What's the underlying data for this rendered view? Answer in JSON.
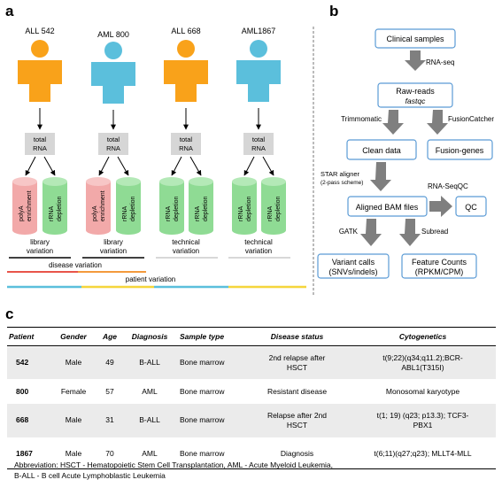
{
  "panel_labels": {
    "a": "a",
    "b": "b",
    "c": "c"
  },
  "panel_a": {
    "patients": [
      {
        "name": "ALL 542",
        "color": "#f9a21a"
      },
      {
        "name": "AML 800",
        "color": "#5bbfdc"
      },
      {
        "name": "ALL 668",
        "color": "#f9a21a"
      },
      {
        "name": "AML1867",
        "color": "#5bbfdc"
      }
    ],
    "total_rna": [
      "total",
      "RNA"
    ],
    "tube_labels": {
      "polya": [
        "polyA",
        "enrichment"
      ],
      "rrna": [
        "rRNA",
        "depletion"
      ]
    },
    "variation_labels": [
      [
        "library",
        "variation"
      ],
      [
        "library",
        "variation"
      ],
      [
        "technical",
        "variation"
      ],
      [
        "technical",
        "variation"
      ]
    ],
    "disease_variation": "disease variation",
    "patient_variation": "patient variation",
    "colors": {
      "polya": "#f2a9a9",
      "rrna": "#8fdb94",
      "box": "#d6d6d6"
    }
  },
  "panel_b": {
    "boxes": {
      "clinical": "Clinical samples",
      "raw_reads": "Raw-reads",
      "fastqc": "fastqc",
      "clean": "Clean data",
      "fusion_genes": "Fusion-genes",
      "aligned": "Aligned BAM files",
      "qc": "QC",
      "variant_line1": "Variant calls",
      "variant_line2": "(SNVs/indels)",
      "feature_line1": "Feature Counts",
      "feature_line2": "(RPKM/CPM)"
    },
    "edges": {
      "rnaseq": "RNA-seq",
      "trimmomatic": "Trimmomatic",
      "fusioncatcher": "FusionCatcher",
      "star": "STAR aligner",
      "star_note": "(2-pass scheme)",
      "rnaseqc": "RNA-SeqQC",
      "gatk": "GATK",
      "subread": "Subread"
    },
    "colors": {
      "box_border": "#5b9bd5",
      "arrow": "#7f7f7f"
    }
  },
  "table": {
    "headers": [
      "Patient",
      "Gender",
      "Age",
      "Diagnosis",
      "Sample type",
      "Disease status",
      "Cytogenetics"
    ],
    "rows": [
      {
        "patient": "542",
        "gender": "Male",
        "age": "49",
        "diagnosis": "B-ALL",
        "sample": "Bone marrow",
        "status": [
          "2nd relapse after",
          "HSCT"
        ],
        "cyto": [
          "t(9;22)(q34;q11.2);BCR-",
          "ABL1(T315I)"
        ]
      },
      {
        "patient": "800",
        "gender": "Female",
        "age": "57",
        "diagnosis": "AML",
        "sample": "Bone marrow",
        "status": [
          "Resistant disease"
        ],
        "cyto": [
          "Monosomal karyotype"
        ]
      },
      {
        "patient": "668",
        "gender": "Male",
        "age": "31",
        "diagnosis": "B-ALL",
        "sample": "Bone marrow",
        "status": [
          "Relapse after 2nd",
          "HSCT"
        ],
        "cyto": [
          "t(1; 19) (q23; p13.3); TCF3-",
          "PBX1"
        ]
      },
      {
        "patient": "1867",
        "gender": "Male",
        "age": "70",
        "diagnosis": "AML",
        "sample": "Bone marrow",
        "status": [
          "Diagnosis"
        ],
        "cyto": [
          "t(6;11)(q27;q23); MLLT4-MLL"
        ]
      }
    ],
    "abbreviation": [
      "Abbreviation: HSCT - Hematopoietic Stem Cell Transplantation, AML - Acute Myeloid Leukemia,",
      "B-ALL - B cell Acute Lymphoblastic Leukemia"
    ]
  }
}
